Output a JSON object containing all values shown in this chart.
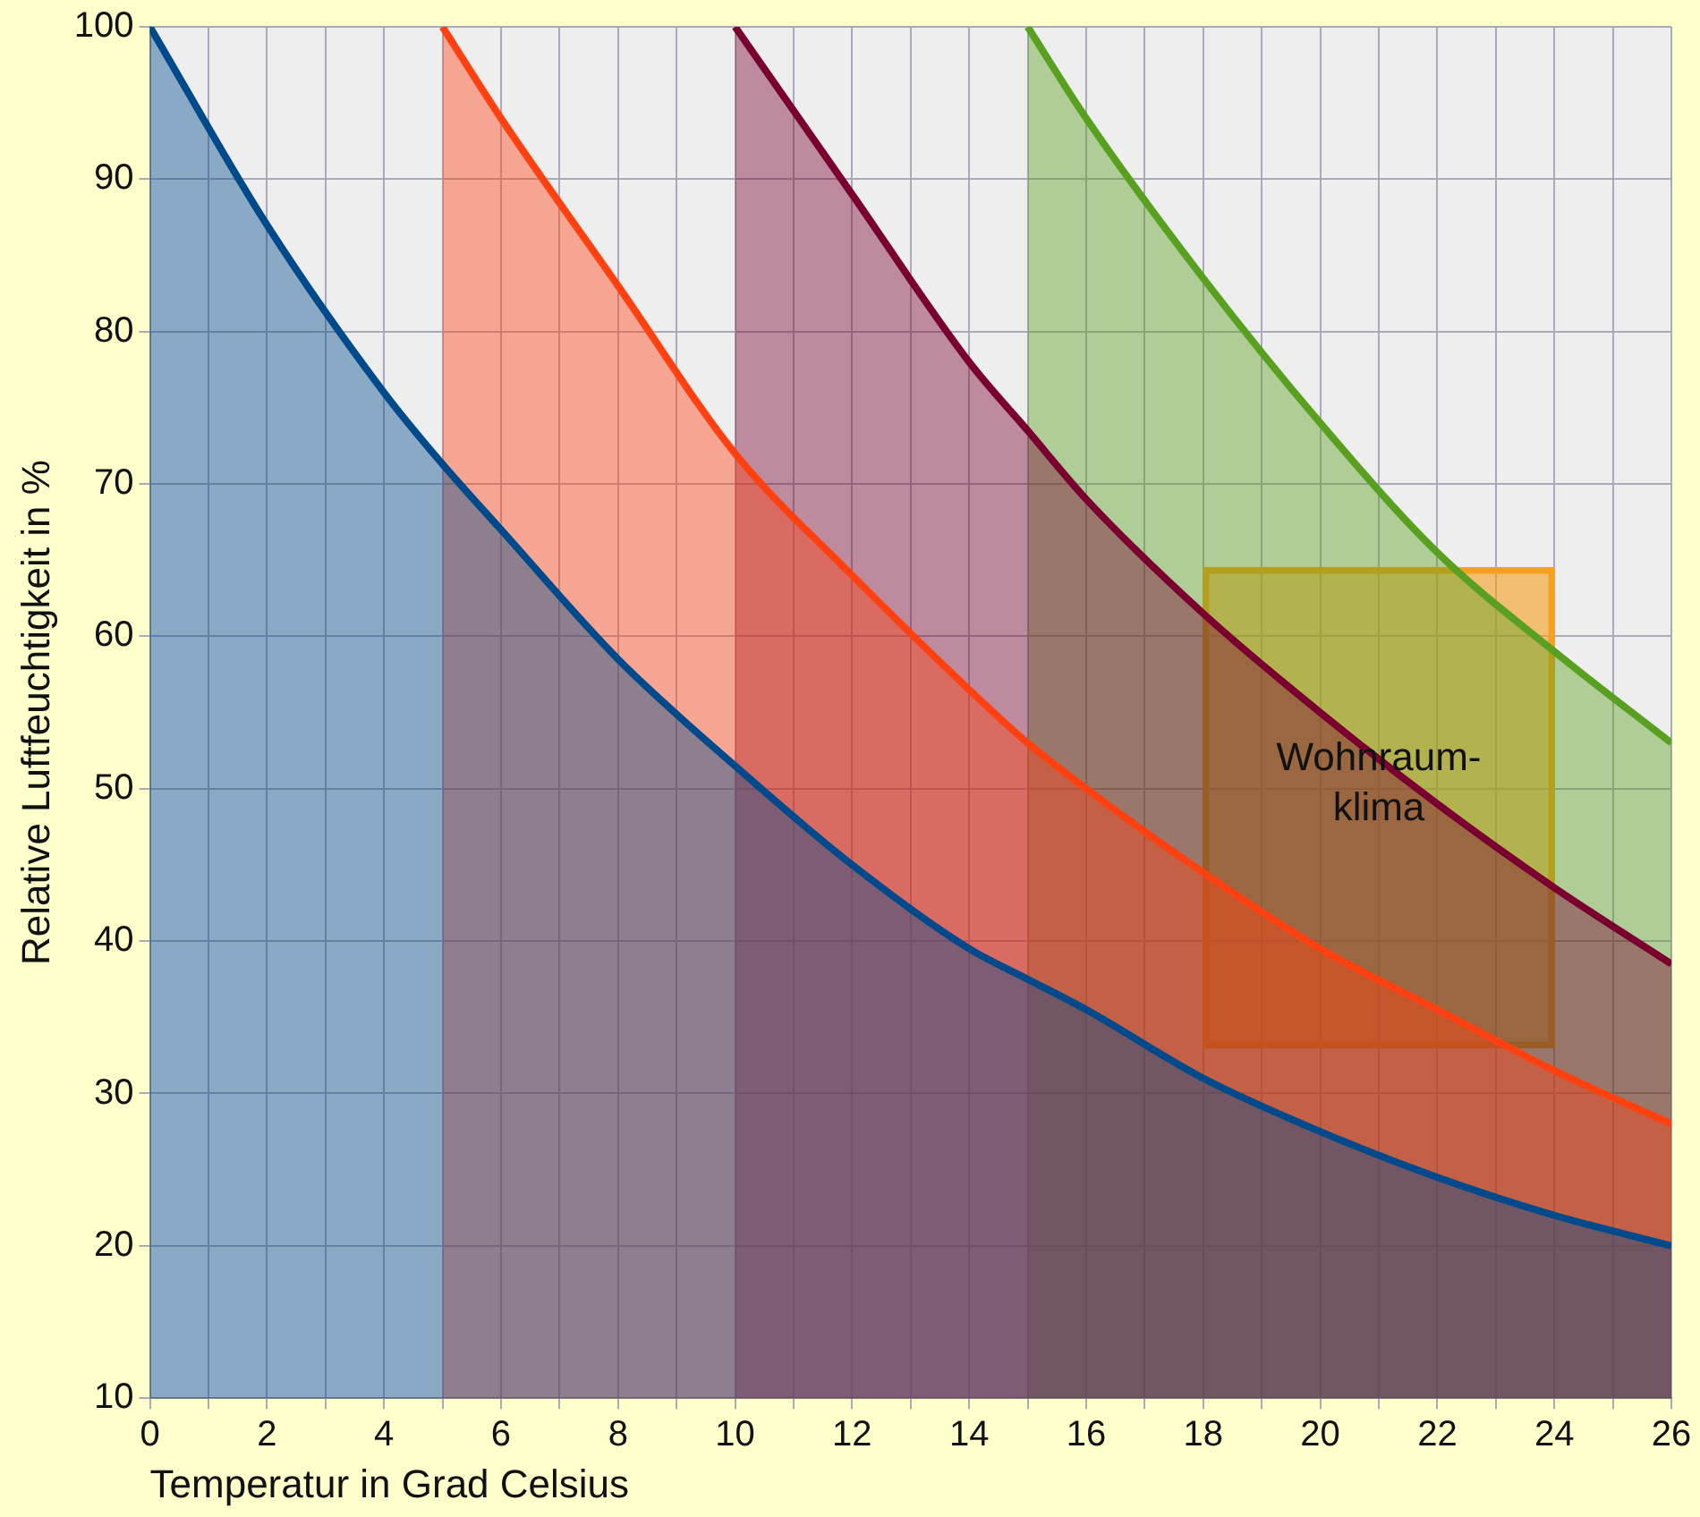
{
  "chart_data": {
    "type": "area",
    "xlabel": "Temperatur in Grad Celsius",
    "ylabel": "Relative Luftfeuchtigkeit in %",
    "xlim": [
      0,
      26
    ],
    "ylim": [
      10,
      100
    ],
    "xticks": [
      0,
      {
        "value": 1,
        "label": null
      },
      2,
      {
        "value": 3,
        "label": null
      },
      4,
      {
        "value": 5,
        "label": null
      },
      6,
      {
        "value": 7,
        "label": null
      },
      8,
      {
        "value": 9,
        "label": null
      },
      10,
      {
        "value": 11,
        "label": null
      },
      12,
      {
        "value": 13,
        "label": null
      },
      14,
      {
        "value": 15,
        "label": null
      },
      16,
      {
        "value": 17,
        "label": null
      },
      18,
      {
        "value": 19,
        "label": null
      },
      20,
      {
        "value": 21,
        "label": null
      },
      22,
      {
        "value": 23,
        "label": null
      },
      24,
      {
        "value": 25,
        "label": null
      },
      26
    ],
    "yticks": [
      10,
      20,
      30,
      40,
      50,
      60,
      70,
      80,
      90,
      100
    ],
    "grid": true,
    "legend": false,
    "marker": "none",
    "line_style": "solid",
    "series": [
      {
        "color": "#004a8c",
        "x": [
          0,
          2,
          4,
          5,
          6,
          8,
          10,
          12,
          14,
          15,
          16,
          18,
          20,
          22,
          24,
          26
        ],
        "values": [
          100,
          87,
          76,
          71.3,
          67,
          58.5,
          51.5,
          45,
          39.5,
          37.5,
          35.5,
          31,
          27.5,
          24.5,
          22,
          20
        ]
      },
      {
        "color": "#ff4010",
        "x": [
          5,
          6,
          8,
          10,
          12,
          14,
          15,
          16,
          18,
          20,
          22,
          24,
          26
        ],
        "values": [
          100,
          94,
          83,
          72,
          64,
          56.5,
          53,
          50,
          44.5,
          39.5,
          35.5,
          31.5,
          28
        ]
      },
      {
        "color": "#7a0030",
        "x": [
          10,
          12,
          14,
          15,
          16,
          18,
          20,
          22,
          24,
          26
        ],
        "values": [
          100,
          89,
          78,
          73.5,
          69,
          61.5,
          55,
          49,
          43.5,
          38.5
        ]
      },
      {
        "color": "#5aa020",
        "x": [
          15,
          16,
          18,
          20,
          22,
          24,
          26
        ],
        "values": [
          100,
          94,
          83.5,
          74,
          65.5,
          59,
          53
        ]
      },
      {
        "type": "bar",
        "name": "Wohnraum-klima",
        "color": "#f5a020",
        "x": [
          21
        ],
        "base": [
          33
        ],
        "values": [
          31.5
        ]
      }
    ]
  }
}
